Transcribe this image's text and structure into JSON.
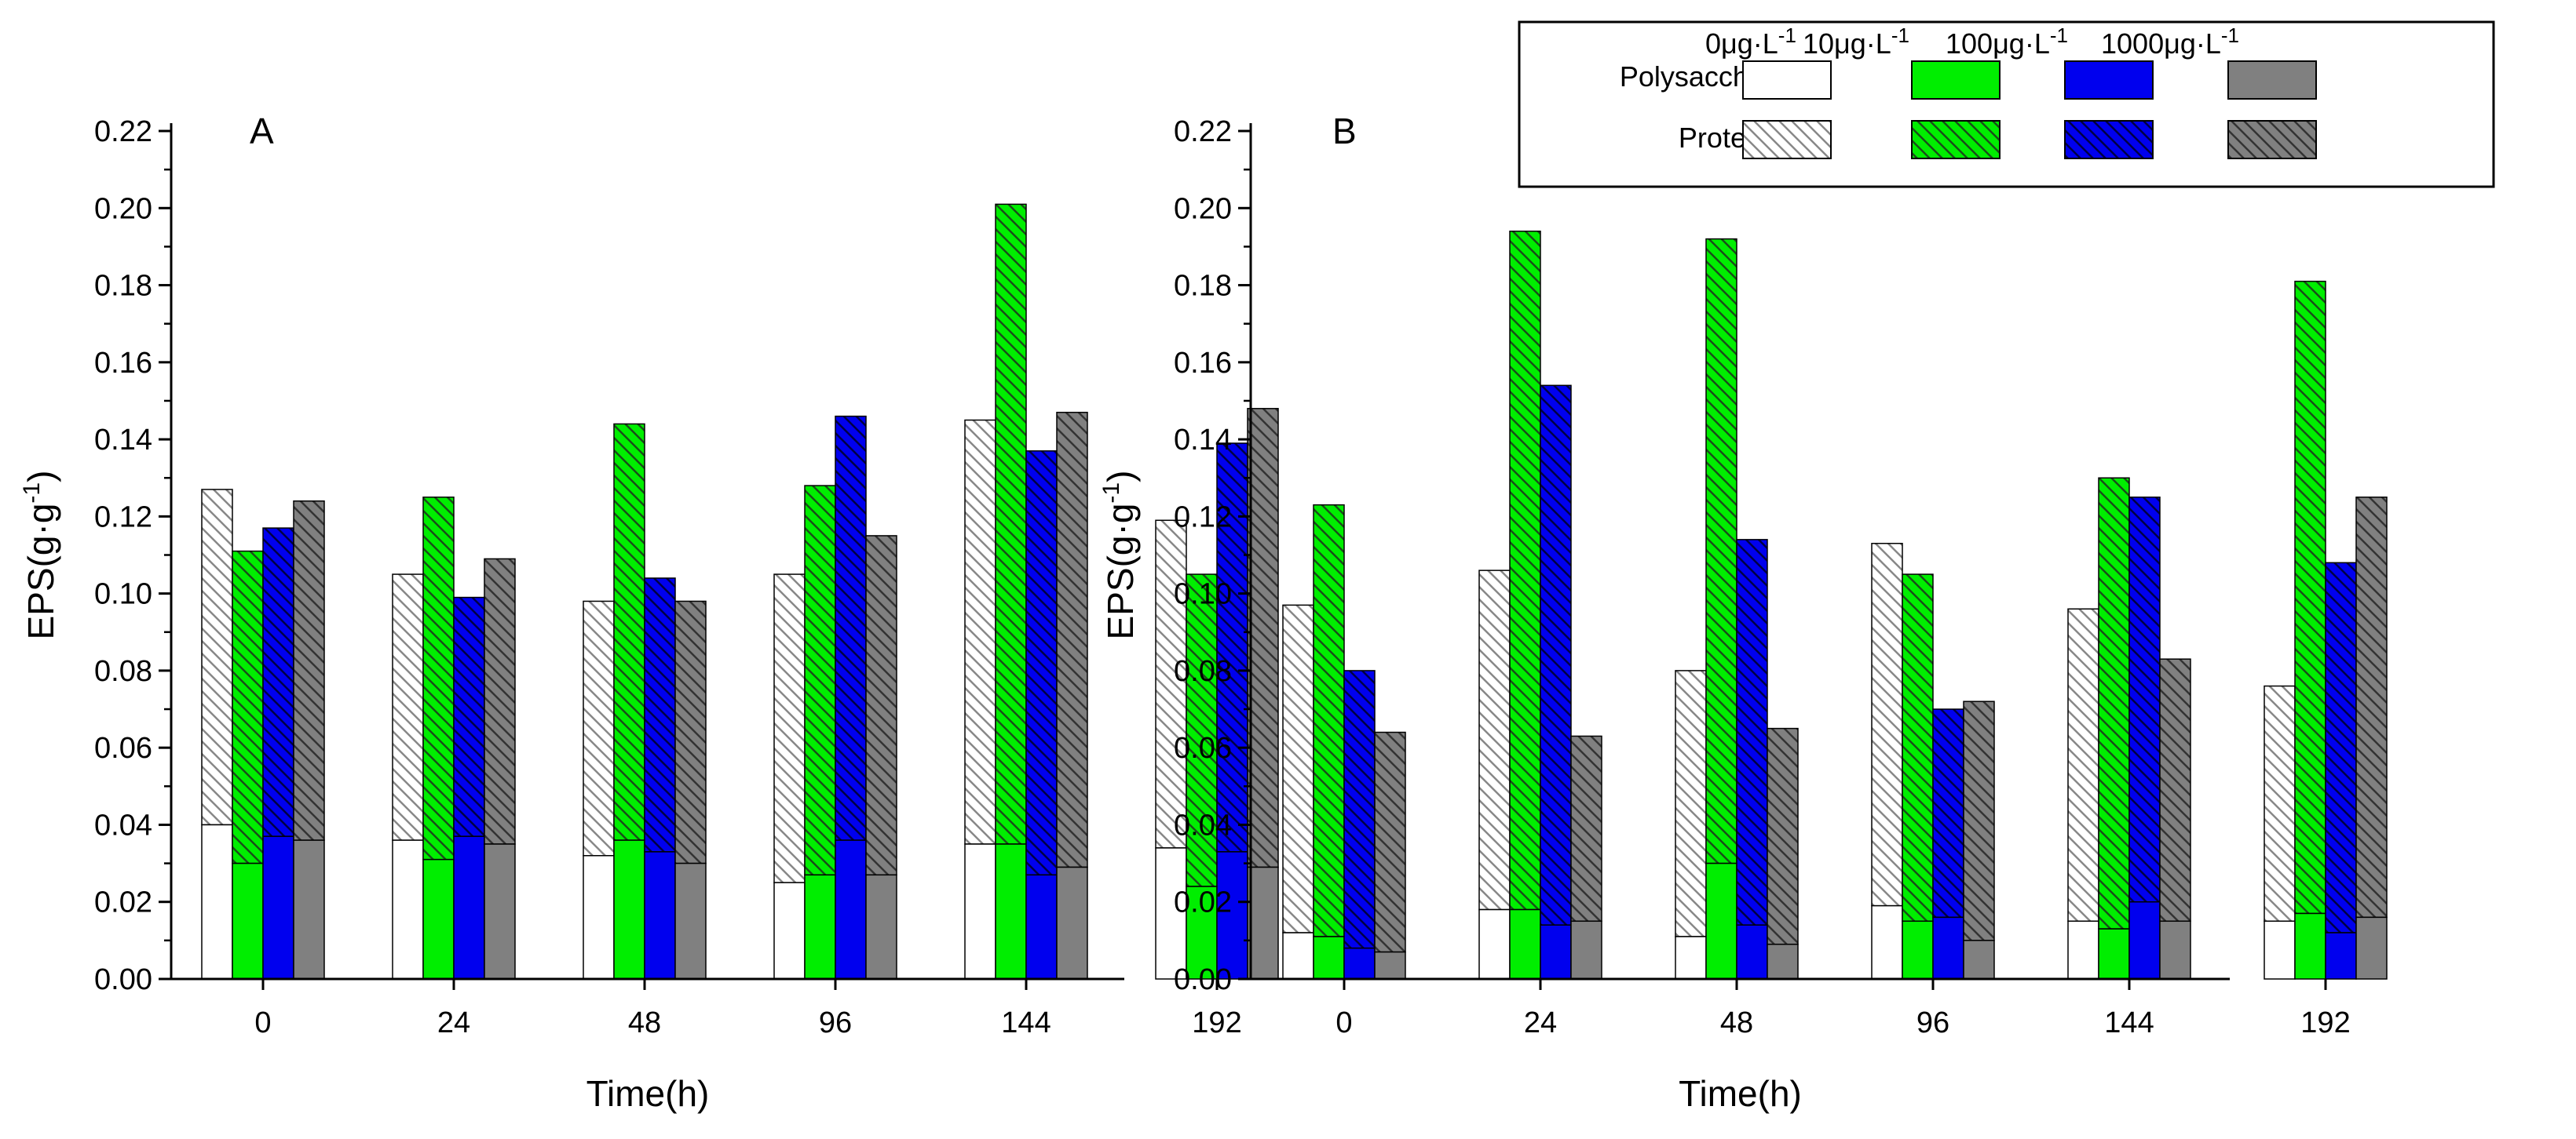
{
  "chart_data": [
    {
      "type": "bar",
      "subtype": "stacked-grouped",
      "title": "A",
      "xlabel": "Time(h)",
      "ylabel": "EPS(g·g-1)",
      "ylabel_base": "EPS(g·g",
      "ylabel_sup": "-1",
      "ylabel_close": ")",
      "ylim": [
        0,
        0.22
      ],
      "yticks": [
        "0.00",
        "0.02",
        "0.04",
        "0.06",
        "0.08",
        "0.10",
        "0.12",
        "0.14",
        "0.16",
        "0.18",
        "0.20",
        "0.22"
      ],
      "categories": [
        "0",
        "24",
        "48",
        "96",
        "144",
        "192"
      ],
      "series": [
        {
          "name": "0μg·L-1",
          "polysaccharides": [
            0.04,
            0.036,
            0.032,
            0.025,
            0.035,
            0.034
          ],
          "total": [
            0.127,
            0.105,
            0.098,
            0.105,
            0.145,
            0.119
          ]
        },
        {
          "name": "10μg·L-1",
          "polysaccharides": [
            0.03,
            0.031,
            0.036,
            0.027,
            0.035,
            0.024
          ],
          "total": [
            0.111,
            0.125,
            0.144,
            0.128,
            0.201,
            0.105
          ]
        },
        {
          "name": "100μg·L-1",
          "polysaccharides": [
            0.037,
            0.037,
            0.033,
            0.036,
            0.027,
            0.033
          ],
          "total": [
            0.117,
            0.099,
            0.104,
            0.146,
            0.137,
            0.139
          ]
        },
        {
          "name": "1000μg·L-1",
          "polysaccharides": [
            0.036,
            0.035,
            0.03,
            0.027,
            0.029,
            0.029
          ],
          "total": [
            0.124,
            0.109,
            0.098,
            0.115,
            0.147,
            0.148
          ]
        }
      ]
    },
    {
      "type": "bar",
      "subtype": "stacked-grouped",
      "title": "B",
      "xlabel": "Time(h)",
      "ylabel": "EPS(g·g-1)",
      "ylabel_base": "EPS(g·g",
      "ylabel_sup": "-1",
      "ylabel_close": ")",
      "ylim": [
        0,
        0.22
      ],
      "yticks": [
        "0.00",
        "0.02",
        "0.04",
        "0.06",
        "0.08",
        "0.10",
        "0.12",
        "0.14",
        "0.16",
        "0.18",
        "0.20",
        "0.22"
      ],
      "categories": [
        "0",
        "24",
        "48",
        "96",
        "144",
        "192"
      ],
      "series": [
        {
          "name": "0μg·L-1",
          "polysaccharides": [
            0.012,
            0.018,
            0.011,
            0.019,
            0.015,
            0.015
          ],
          "total": [
            0.097,
            0.106,
            0.08,
            0.113,
            0.096,
            0.076
          ]
        },
        {
          "name": "10μg·L-1",
          "polysaccharides": [
            0.011,
            0.018,
            0.03,
            0.015,
            0.013,
            0.017
          ],
          "total": [
            0.123,
            0.194,
            0.192,
            0.105,
            0.13,
            0.181
          ]
        },
        {
          "name": "100μg·L-1",
          "polysaccharides": [
            0.008,
            0.014,
            0.014,
            0.016,
            0.02,
            0.012
          ],
          "total": [
            0.08,
            0.154,
            0.114,
            0.07,
            0.125,
            0.108
          ]
        },
        {
          "name": "1000μg·L-1",
          "polysaccharides": [
            0.007,
            0.015,
            0.009,
            0.01,
            0.015,
            0.016
          ],
          "total": [
            0.064,
            0.063,
            0.065,
            0.072,
            0.083,
            0.125
          ]
        }
      ]
    }
  ],
  "legend": {
    "row_labels": [
      "Polysaccharides",
      "Proteins"
    ],
    "series": [
      {
        "base": "0μg·L",
        "sup": "-1"
      },
      {
        "base": "10μg·L",
        "sup": "-1"
      },
      {
        "base": "100μg·L",
        "sup": "-1"
      },
      {
        "base": "1000μg·L",
        "sup": "-1"
      }
    ]
  },
  "colors": {
    "series": [
      "#ffffff",
      "#00ee00",
      "#0000ee",
      "#808080"
    ],
    "hatch": [
      "#888888",
      "#1a4d1a",
      "#000044",
      "#333333"
    ],
    "axis": "#000000"
  }
}
